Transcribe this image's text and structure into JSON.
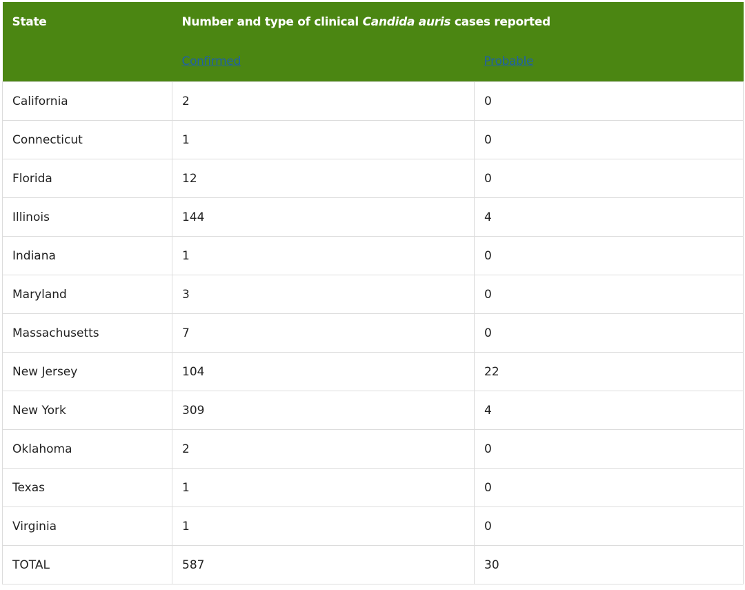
{
  "table": {
    "header": {
      "state": "State",
      "title": [
        "Number and type of clinical",
        "Candida auris",
        "cases reported"
      ],
      "confirmed": "Confirmed",
      "probable": "Probable"
    },
    "rows": [
      [
        "California",
        2,
        0
      ],
      [
        "Connecticut",
        1,
        0
      ],
      [
        "Florida",
        12,
        0
      ],
      [
        "Illinois",
        144,
        4
      ],
      [
        "Indiana",
        1,
        0
      ],
      [
        "Maryland",
        3,
        0
      ],
      [
        "Massachusetts",
        7,
        0
      ],
      [
        "New Jersey",
        104,
        22
      ],
      [
        "New York",
        309,
        4
      ],
      [
        "Oklahoma",
        2,
        0
      ],
      [
        "Texas",
        1,
        0
      ],
      [
        "Virginia",
        1,
        0
      ],
      [
        "TOTAL",
        587,
        30
      ]
    ]
  }
}
